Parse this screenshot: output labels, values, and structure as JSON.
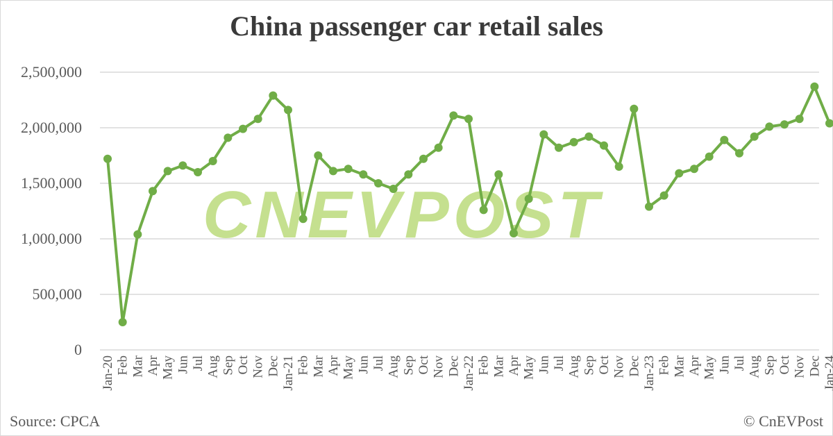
{
  "title": "China passenger car retail sales",
  "source": "Source: CPCA",
  "copyright": "© CnEVPost",
  "watermark": "CNEVPOST",
  "colors": {
    "line": "#70ad47",
    "watermark": "#c5e08f",
    "grid": "#d9d9d9",
    "text": "#595959"
  },
  "chart_data": {
    "type": "line",
    "title": "China passenger car retail sales",
    "xlabel": "",
    "ylabel": "",
    "ylim": [
      0,
      2500000
    ],
    "yticks": [
      0,
      500000,
      1000000,
      1500000,
      2000000,
      2500000
    ],
    "ytick_labels": [
      "0",
      "500,000",
      "1,000,000",
      "1,500,000",
      "2,000,000",
      "2,500,000"
    ],
    "grid": true,
    "legend": null,
    "categories": [
      "Jan-20",
      "Feb",
      "Mar",
      "Apr",
      "May",
      "Jun",
      "Jul",
      "Aug",
      "Sep",
      "Oct",
      "Nov",
      "Dec",
      "Jan-21",
      "Feb",
      "Mar",
      "Apr",
      "May",
      "Jun",
      "Jul",
      "Aug",
      "Sep",
      "Oct",
      "Nov",
      "Dec",
      "Jan-22",
      "Feb",
      "Mar",
      "Apr",
      "May",
      "Jun",
      "Jul",
      "Aug",
      "Sep",
      "Oct",
      "Nov",
      "Dec",
      "Jan-23",
      "Feb",
      "Mar",
      "Apr",
      "May",
      "Jun",
      "Jul",
      "Aug",
      "Sep",
      "Oct",
      "Nov",
      "Dec",
      "Jan-24"
    ],
    "series": [
      {
        "name": "Retail sales",
        "values": [
          1720000,
          250000,
          1040000,
          1430000,
          1610000,
          1660000,
          1600000,
          1700000,
          1910000,
          1990000,
          2080000,
          2290000,
          2160000,
          1180000,
          1750000,
          1610000,
          1630000,
          1580000,
          1500000,
          1450000,
          1580000,
          1720000,
          1820000,
          2110000,
          2080000,
          1260000,
          1580000,
          1050000,
          1360000,
          1940000,
          1820000,
          1870000,
          1920000,
          1840000,
          1650000,
          2170000,
          1290000,
          1390000,
          1590000,
          1630000,
          1740000,
          1890000,
          1770000,
          1920000,
          2010000,
          2030000,
          2080000,
          2370000,
          2040000
        ]
      }
    ]
  }
}
